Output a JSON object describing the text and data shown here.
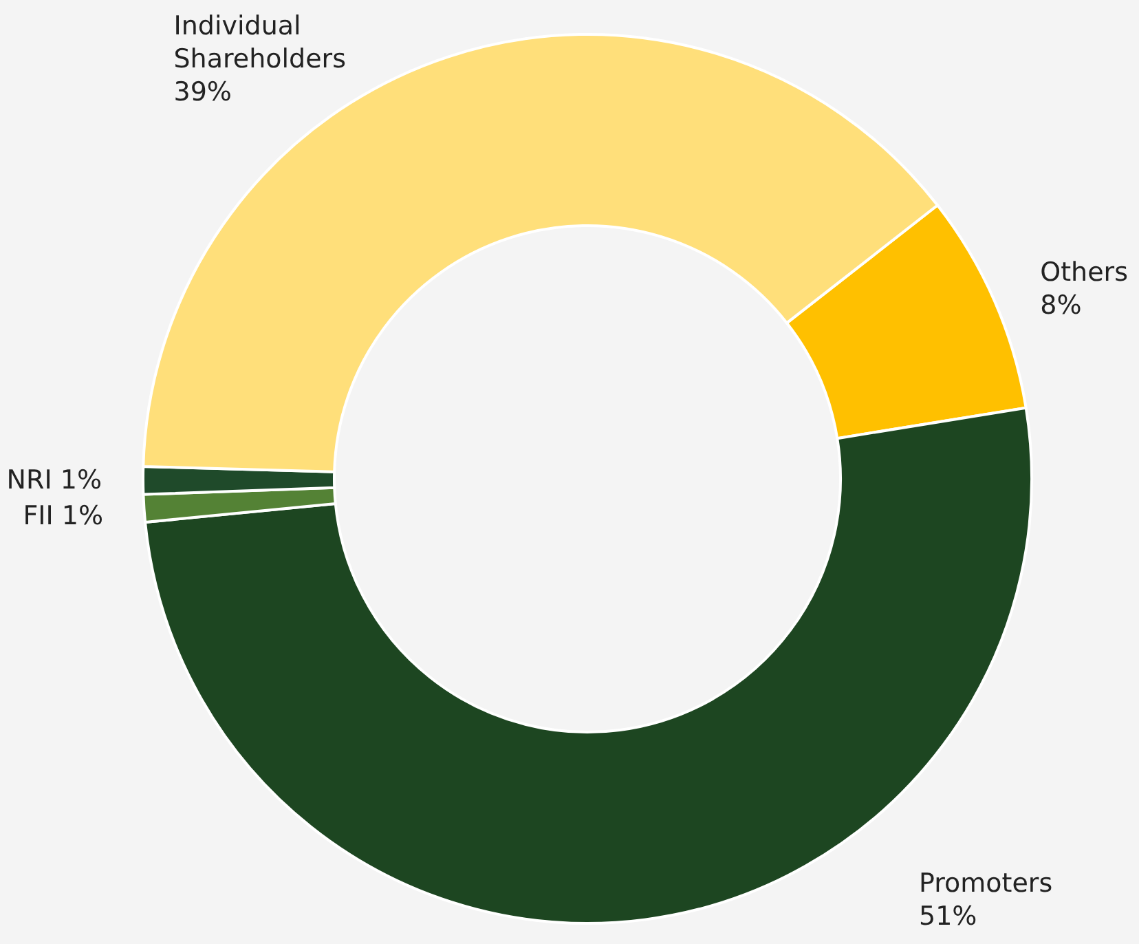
{
  "chart_data": {
    "type": "donut",
    "categories": [
      "Others",
      "Promoters",
      "FII",
      "NRI",
      "Individual Shareholders"
    ],
    "values": [
      8,
      51,
      1,
      1,
      39
    ],
    "value_labels": [
      "8%",
      "51%",
      "1%",
      "1%",
      "39%"
    ],
    "colors": [
      "#ffc000",
      "#1d4621",
      "#548235",
      "#1f4a2a",
      "#ffdf7a"
    ]
  }
}
